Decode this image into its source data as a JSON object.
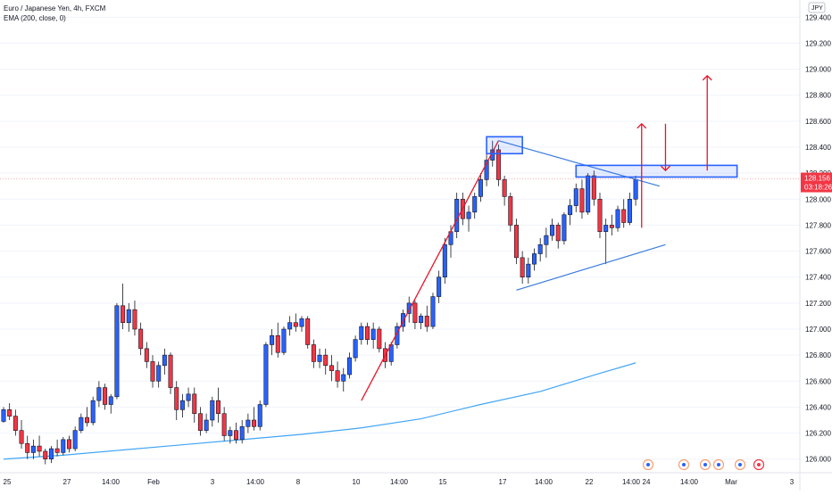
{
  "legend": {
    "symbol_line": "Euro / Japanese Yen, 4h, FXCM",
    "indicator_line": "EMA (200, close, 0)"
  },
  "price_scale": {
    "currency_badge": "JPY",
    "ticks": [
      "126.000",
      "126.200",
      "126.400",
      "126.600",
      "126.800",
      "127.000",
      "127.200",
      "127.400",
      "127.600",
      "127.800",
      "128.000",
      "128.200",
      "128.400",
      "128.600",
      "128.800",
      "129.000",
      "129.200",
      "129.400"
    ],
    "last_price_label": "128.156",
    "countdown_label": "03:18:26"
  },
  "time_axis": {
    "labels": [
      "25",
      "27",
      "14:00",
      "Feb",
      "3",
      "14:00",
      "8",
      "10",
      "14:00",
      "15",
      "17",
      "14:00",
      "22",
      "14:00",
      "24",
      "14:00",
      "Mar",
      "3"
    ]
  },
  "colors": {
    "bull": "#2962ff",
    "bear": "#f23645",
    "ema": "#42a5f5",
    "drawing_red": "#e8152a",
    "drawing_blue": "#2962ff",
    "trendline_blue": "#3a7ce0",
    "last_price": "#f23645"
  },
  "chart_data": {
    "type": "candlestick",
    "symbol": "Euro / Japanese Yen",
    "timeframe": "4h",
    "source": "FXCM",
    "ylim": [
      125.95,
      129.45
    ],
    "last_price": 128.156,
    "candles": [
      [
        126.29,
        126.4,
        126.28,
        126.38
      ],
      [
        126.38,
        126.43,
        126.3,
        126.33
      ],
      [
        126.33,
        126.38,
        126.18,
        126.22
      ],
      [
        126.22,
        126.3,
        126.08,
        126.12
      ],
      [
        126.12,
        126.18,
        126.0,
        126.05
      ],
      [
        126.05,
        126.15,
        126.0,
        126.1
      ],
      [
        126.1,
        126.18,
        126.02,
        126.06
      ],
      [
        126.06,
        126.08,
        125.96,
        126.0
      ],
      [
        126.0,
        126.1,
        125.97,
        126.08
      ],
      [
        126.08,
        126.15,
        126.02,
        126.05
      ],
      [
        126.05,
        126.17,
        126.03,
        126.15
      ],
      [
        126.15,
        126.18,
        126.05,
        126.08
      ],
      [
        126.08,
        126.25,
        126.06,
        126.22
      ],
      [
        126.22,
        126.35,
        126.2,
        126.32
      ],
      [
        126.32,
        126.4,
        126.25,
        126.28
      ],
      [
        126.28,
        126.48,
        126.26,
        126.45
      ],
      [
        126.45,
        126.6,
        126.4,
        126.55
      ],
      [
        126.55,
        126.58,
        126.38,
        126.42
      ],
      [
        126.42,
        126.5,
        126.35,
        126.48
      ],
      [
        126.48,
        127.2,
        126.46,
        127.18
      ],
      [
        127.18,
        127.35,
        127.0,
        127.05
      ],
      [
        127.05,
        127.2,
        126.98,
        127.15
      ],
      [
        127.15,
        127.22,
        126.95,
        127.0
      ],
      [
        127.0,
        127.05,
        126.8,
        126.85
      ],
      [
        126.85,
        126.9,
        126.7,
        126.75
      ],
      [
        126.75,
        126.8,
        126.55,
        126.6
      ],
      [
        126.6,
        126.75,
        126.55,
        126.72
      ],
      [
        126.72,
        126.85,
        126.65,
        126.8
      ],
      [
        126.8,
        126.82,
        126.5,
        126.55
      ],
      [
        126.55,
        126.6,
        126.3,
        126.38
      ],
      [
        126.38,
        126.5,
        126.32,
        126.45
      ],
      [
        126.45,
        126.55,
        126.4,
        126.5
      ],
      [
        126.5,
        126.55,
        126.28,
        126.35
      ],
      [
        126.35,
        126.4,
        126.18,
        126.22
      ],
      [
        126.22,
        126.35,
        126.2,
        126.3
      ],
      [
        126.3,
        126.48,
        126.25,
        126.45
      ],
      [
        126.45,
        126.55,
        126.28,
        126.35
      ],
      [
        126.35,
        126.4,
        126.14,
        126.18
      ],
      [
        126.18,
        126.25,
        126.12,
        126.22
      ],
      [
        126.22,
        126.28,
        126.12,
        126.15
      ],
      [
        126.15,
        126.3,
        126.12,
        126.25
      ],
      [
        126.25,
        126.35,
        126.2,
        126.3
      ],
      [
        126.3,
        126.4,
        126.22,
        126.25
      ],
      [
        126.25,
        126.45,
        126.22,
        126.42
      ],
      [
        126.42,
        126.9,
        126.4,
        126.88
      ],
      [
        126.88,
        127.0,
        126.8,
        126.95
      ],
      [
        126.95,
        127.05,
        126.78,
        126.82
      ],
      [
        126.82,
        127.02,
        126.8,
        127.0
      ],
      [
        127.0,
        127.1,
        126.95,
        127.05
      ],
      [
        127.05,
        127.12,
        126.98,
        127.02
      ],
      [
        127.02,
        127.1,
        126.98,
        127.08
      ],
      [
        127.08,
        127.1,
        126.85,
        126.88
      ],
      [
        126.88,
        126.92,
        126.7,
        126.75
      ],
      [
        126.75,
        126.85,
        126.7,
        126.8
      ],
      [
        126.8,
        126.85,
        126.65,
        126.72
      ],
      [
        126.72,
        126.8,
        126.6,
        126.68
      ],
      [
        126.68,
        126.75,
        126.55,
        126.6
      ],
      [
        126.6,
        126.7,
        126.52,
        126.65
      ],
      [
        126.65,
        126.82,
        126.62,
        126.78
      ],
      [
        126.78,
        126.95,
        126.75,
        126.92
      ],
      [
        126.92,
        127.05,
        126.88,
        127.02
      ],
      [
        127.02,
        127.05,
        126.88,
        126.92
      ],
      [
        126.92,
        127.05,
        126.85,
        127.0
      ],
      [
        127.0,
        127.02,
        126.82,
        126.85
      ],
      [
        126.85,
        126.9,
        126.7,
        126.75
      ],
      [
        126.75,
        126.9,
        126.72,
        126.88
      ],
      [
        126.88,
        127.05,
        126.85,
        127.02
      ],
      [
        127.02,
        127.15,
        126.98,
        127.12
      ],
      [
        127.12,
        127.25,
        127.05,
        127.2
      ],
      [
        127.2,
        127.22,
        127.0,
        127.05
      ],
      [
        127.05,
        127.12,
        127.0,
        127.1
      ],
      [
        127.1,
        127.18,
        126.98,
        127.02
      ],
      [
        127.02,
        127.28,
        127.0,
        127.25
      ],
      [
        127.25,
        127.45,
        127.2,
        127.4
      ],
      [
        127.4,
        127.7,
        127.35,
        127.65
      ],
      [
        127.65,
        127.8,
        127.55,
        127.75
      ],
      [
        127.75,
        128.05,
        127.7,
        128.0
      ],
      [
        128.0,
        128.05,
        127.8,
        127.85
      ],
      [
        127.85,
        127.95,
        127.75,
        127.9
      ],
      [
        127.9,
        128.05,
        127.85,
        128.02
      ],
      [
        128.02,
        128.2,
        127.98,
        128.15
      ],
      [
        128.15,
        128.35,
        128.1,
        128.3
      ],
      [
        128.3,
        128.45,
        128.25,
        128.38
      ],
      [
        128.38,
        128.42,
        128.1,
        128.15
      ],
      [
        128.15,
        128.18,
        127.95,
        128.02
      ],
      [
        128.02,
        128.05,
        127.75,
        127.8
      ],
      [
        127.8,
        127.85,
        127.5,
        127.55
      ],
      [
        127.55,
        127.6,
        127.35,
        127.4
      ],
      [
        127.4,
        127.55,
        127.35,
        127.5
      ],
      [
        127.5,
        127.62,
        127.45,
        127.58
      ],
      [
        127.58,
        127.7,
        127.52,
        127.65
      ],
      [
        127.65,
        127.78,
        127.55,
        127.72
      ],
      [
        127.72,
        127.85,
        127.68,
        127.8
      ],
      [
        127.8,
        127.82,
        127.62,
        127.68
      ],
      [
        127.68,
        127.9,
        127.65,
        127.88
      ],
      [
        127.88,
        128.0,
        127.8,
        127.95
      ],
      [
        127.95,
        128.12,
        127.9,
        128.08
      ],
      [
        128.08,
        128.15,
        127.85,
        127.9
      ],
      [
        127.9,
        128.2,
        127.88,
        128.18
      ],
      [
        128.18,
        128.22,
        127.95,
        128.0
      ],
      [
        128.0,
        128.05,
        127.7,
        127.75
      ],
      [
        127.75,
        127.85,
        127.5,
        127.8
      ],
      [
        127.8,
        127.88,
        127.72,
        127.78
      ],
      [
        127.78,
        127.95,
        127.75,
        127.92
      ],
      [
        127.92,
        128.0,
        127.78,
        127.82
      ],
      [
        127.82,
        128.05,
        127.8,
        128.0
      ],
      [
        128.0,
        128.18,
        127.95,
        128.15
      ]
    ],
    "ema200": [
      [
        0,
        126.0
      ],
      [
        10,
        126.03
      ],
      [
        20,
        126.07
      ],
      [
        30,
        126.11
      ],
      [
        40,
        126.15
      ],
      [
        50,
        126.19
      ],
      [
        60,
        126.24
      ],
      [
        70,
        126.31
      ],
      [
        80,
        126.42
      ],
      [
        90,
        126.52
      ],
      [
        100,
        126.66
      ],
      [
        106,
        126.74
      ]
    ],
    "drawings": {
      "uptrend_line": {
        "from": [
          60,
          126.45
        ],
        "to": [
          83,
          128.45
        ]
      },
      "resistance_line": {
        "from": [
          83,
          128.45
        ],
        "to": [
          110,
          128.1
        ]
      },
      "support_line": {
        "from": [
          86,
          127.3
        ],
        "to": [
          111,
          127.65
        ]
      },
      "resistance_box_1": {
        "from": [
          81,
          128.48
        ],
        "to": [
          87,
          128.35
        ]
      },
      "resistance_box_2": {
        "from": [
          96,
          128.26
        ],
        "to": [
          123,
          128.17
        ]
      },
      "arrows": [
        {
          "direction": "up",
          "x": 107,
          "from": 127.78,
          "to": 128.58
        },
        {
          "direction": "down",
          "x": 111,
          "from": 128.58,
          "to": 128.22
        },
        {
          "direction": "up",
          "x": 118,
          "from": 128.22,
          "to": 128.95
        }
      ]
    }
  }
}
